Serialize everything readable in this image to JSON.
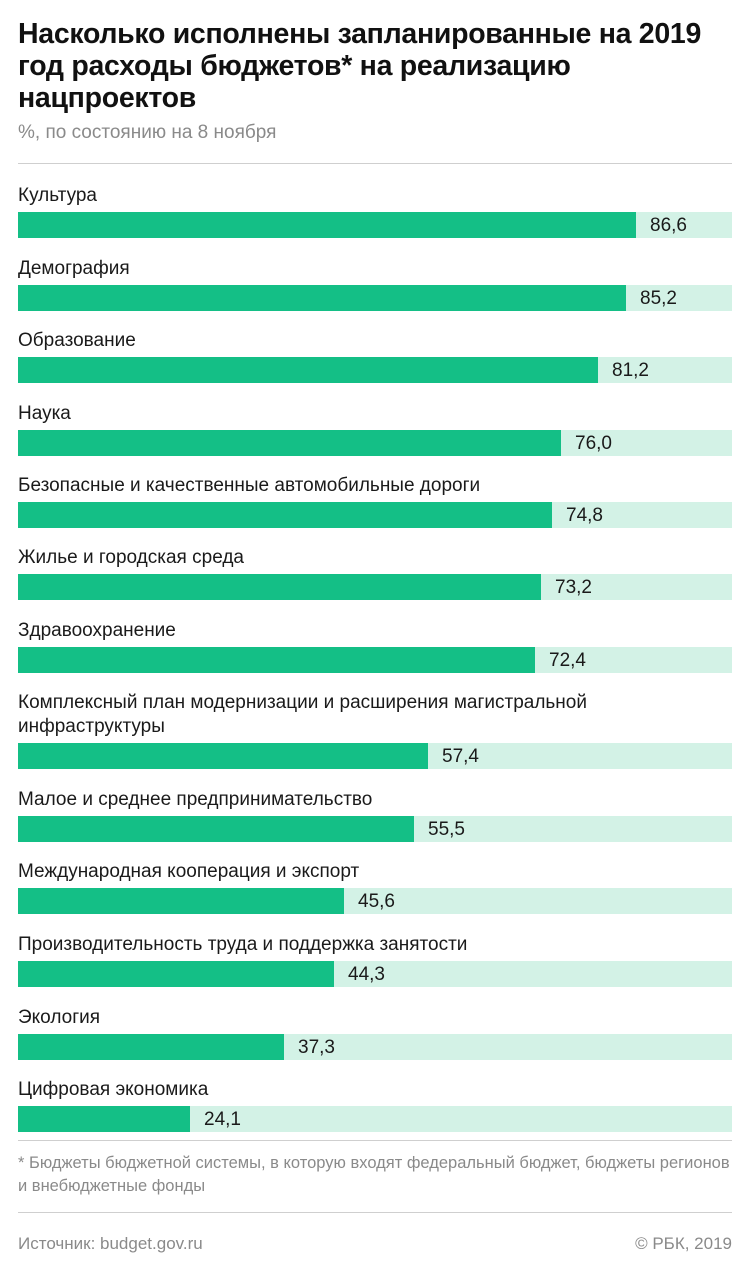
{
  "header": {
    "title": "Насколько исполнены запланированные на 2019 год расходы бюджетов* на реализацию нацпроектов",
    "subtitle": "%, по состоянию на 8 ноября"
  },
  "chart_data": {
    "type": "bar",
    "orientation": "horizontal",
    "title": "Насколько исполнены запланированные на 2019 год расходы бюджетов* на реализацию нацпроектов",
    "subtitle": "%, по состоянию на 8 ноября",
    "xlim": [
      0,
      100
    ],
    "grid": false,
    "categories": [
      "Культура",
      "Демография",
      "Образование",
      "Наука",
      "Безопасные и качественные автомобильные дороги",
      "Жилье и городская среда",
      "Здравоохранение",
      "Комплексный план модернизации и расширения магистральной инфраструктуры",
      "Малое и среднее предпринимательство",
      "Международная кооперация и экспорт",
      "Производительность труда и поддержка занятости",
      "Экология",
      "Цифровая экономика"
    ],
    "values": [
      86.6,
      85.2,
      81.2,
      76.0,
      74.8,
      73.2,
      72.4,
      57.4,
      55.5,
      45.6,
      44.3,
      37.3,
      24.1
    ],
    "value_labels": [
      "86,6",
      "85,2",
      "81,2",
      "76,0",
      "74,8",
      "73,2",
      "72,4",
      "57,4",
      "55,5",
      "45,6",
      "44,3",
      "37,3",
      "24,1"
    ],
    "colors": {
      "fill": "#14bf86",
      "track": "#d3f2e6"
    }
  },
  "footer": {
    "footnote": "* Бюджеты бюджетной системы, в которую входят федеральный бюджет, бюджеты регионов и внебюджетные фонды",
    "source": "Источник: budget.gov.ru",
    "copyright": "© РБК, 2019"
  }
}
